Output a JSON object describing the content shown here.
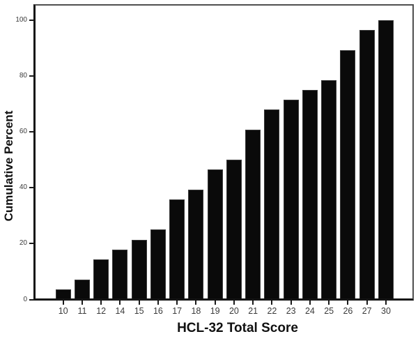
{
  "chart_data": {
    "type": "bar",
    "title": "",
    "xlabel": "HCL-32 Total Score",
    "ylabel": "Cumulative Percent",
    "categories": [
      "10",
      "11",
      "12",
      "14",
      "15",
      "16",
      "17",
      "18",
      "19",
      "20",
      "21",
      "22",
      "23",
      "24",
      "25",
      "26",
      "27",
      "30"
    ],
    "values": [
      3.57,
      7.14,
      14.29,
      17.86,
      21.43,
      25.0,
      35.71,
      39.29,
      46.43,
      50.0,
      60.71,
      67.86,
      71.43,
      75.0,
      78.57,
      89.29,
      96.43,
      100.0
    ],
    "y_ticks": [
      0,
      20,
      40,
      60,
      80,
      100
    ],
    "ylim": [
      0,
      100
    ],
    "grid": false,
    "legend": "none"
  },
  "colors": {
    "background": "#ffffff",
    "bar": "#0a0a0a",
    "bar_edge": "#3a3a3a",
    "axis": "#1a1a1a",
    "frame": "#4f4f4f",
    "tick_label": "#3a3a3a",
    "title": "#111111"
  }
}
